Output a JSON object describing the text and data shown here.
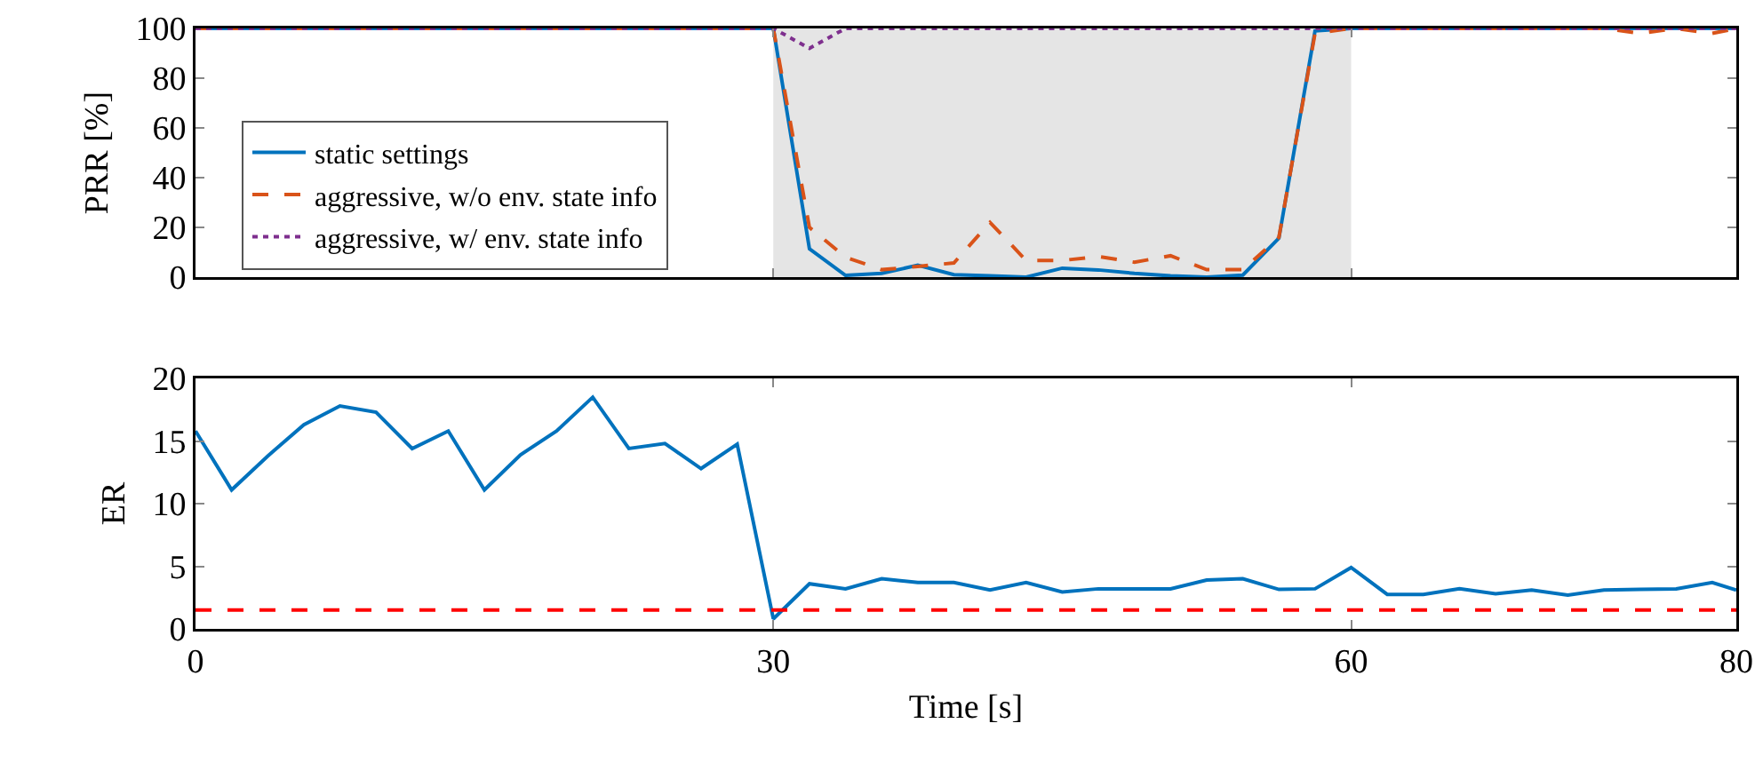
{
  "chart_data": [
    {
      "type": "line",
      "ylabel": "PRR [%]",
      "xlim": [
        0,
        80
      ],
      "xticks": [
        0,
        30,
        60,
        80
      ],
      "ylim": [
        0,
        100
      ],
      "yticks": [
        0,
        20,
        40,
        60,
        80,
        100
      ],
      "tick_labels": "y",
      "grid": false,
      "legend": "bottom left",
      "x": [
        0,
        1.875,
        3.75,
        5.625,
        7.5,
        9.375,
        11.25,
        13.125,
        15,
        16.875,
        18.75,
        20.625,
        22.5,
        24.375,
        26.25,
        28.125,
        30,
        31.875,
        33.75,
        35.625,
        37.5,
        39.375,
        41.25,
        43.125,
        45,
        46.875,
        48.75,
        50.625,
        52.5,
        54.375,
        56.25,
        58.125,
        60,
        61.875,
        63.75,
        65.625,
        67.5,
        69.375,
        71.25,
        73.125,
        75,
        76.875,
        78.75,
        80
      ],
      "bands": [
        {
          "axis": "x",
          "from": 30,
          "to": 60,
          "color": "#e5e5e5"
        }
      ],
      "series": [
        {
          "name": "static settings",
          "color": "#0072bd",
          "line_style": "solid",
          "values": [
            100,
            100,
            100,
            100,
            100,
            100,
            100,
            100,
            100,
            100,
            100,
            100,
            100,
            100,
            100,
            100,
            100,
            11.4,
            0.7,
            1.5,
            4.8,
            1,
            0.5,
            0,
            3.6,
            2.9,
            1.5,
            0.5,
            0,
            0.8,
            15.7,
            99,
            100,
            100,
            100,
            100,
            100,
            100,
            100,
            100,
            100,
            100,
            100,
            100
          ]
        },
        {
          "name": "aggressive, w/o env. state info",
          "color": "#d95319",
          "line_style": "dashed",
          "values": [
            100,
            100,
            100,
            100,
            100,
            100,
            100,
            100,
            100,
            100,
            100,
            100,
            100,
            100,
            100,
            100,
            100,
            20,
            8,
            3,
            4.3,
            5.7,
            22,
            6.7,
            6.7,
            8.3,
            6,
            8.6,
            3,
            3,
            16,
            98,
            100,
            100,
            100,
            100,
            100,
            100,
            100,
            100,
            98,
            100,
            98,
            100
          ]
        },
        {
          "name": "aggressive, w/ env. state info",
          "color": "#7e2f8e",
          "line_style": "dotted",
          "values": [
            100,
            100,
            100,
            100,
            100,
            100,
            100,
            100,
            100,
            100,
            100,
            100,
            100,
            100,
            100,
            100,
            100,
            92,
            100,
            100,
            100,
            100,
            100,
            100,
            100,
            100,
            100,
            100,
            100,
            100,
            100,
            100,
            100,
            100,
            100,
            100,
            100,
            100,
            100,
            100,
            100,
            100,
            100,
            100
          ]
        }
      ]
    },
    {
      "type": "line",
      "xlabel": "Time [s]",
      "ylabel": "ER",
      "xlim": [
        0,
        80
      ],
      "xticks": [
        0,
        30,
        60,
        80
      ],
      "ylim": [
        0,
        20
      ],
      "yticks": [
        0,
        5,
        10,
        15,
        20
      ],
      "grid": false,
      "legend": false,
      "x": [
        0,
        1.875,
        3.75,
        5.625,
        7.5,
        9.375,
        11.25,
        13.125,
        15,
        16.875,
        18.75,
        20.625,
        22.5,
        24.375,
        26.25,
        28.125,
        30,
        31.875,
        33.75,
        35.625,
        37.5,
        39.375,
        41.25,
        43.125,
        45,
        46.875,
        48.75,
        50.625,
        52.5,
        54.375,
        56.25,
        58.125,
        60,
        61.875,
        63.75,
        65.625,
        67.5,
        69.375,
        71.25,
        73.125,
        75,
        76.875,
        78.75,
        80
      ],
      "ref_lines": [
        {
          "axis": "y",
          "value": 1.5,
          "color": "#ff0000",
          "line_style": "dashed"
        }
      ],
      "series": [
        {
          "color": "#0072bd",
          "line_style": "solid",
          "values": [
            15.8,
            11.1,
            13.8,
            16.3,
            17.8,
            17.3,
            14.4,
            15.8,
            11.1,
            13.9,
            15.8,
            18.5,
            14.4,
            14.8,
            12.8,
            14.75,
            0.8,
            3.6,
            3.2,
            4,
            3.7,
            3.7,
            3.1,
            3.7,
            2.95,
            3.2,
            3.2,
            3.2,
            3.9,
            4,
            3.15,
            3.2,
            4.9,
            2.75,
            2.75,
            3.2,
            2.8,
            3.1,
            2.7,
            3.1,
            3.15,
            3.2,
            3.7,
            3.1
          ]
        }
      ]
    }
  ]
}
